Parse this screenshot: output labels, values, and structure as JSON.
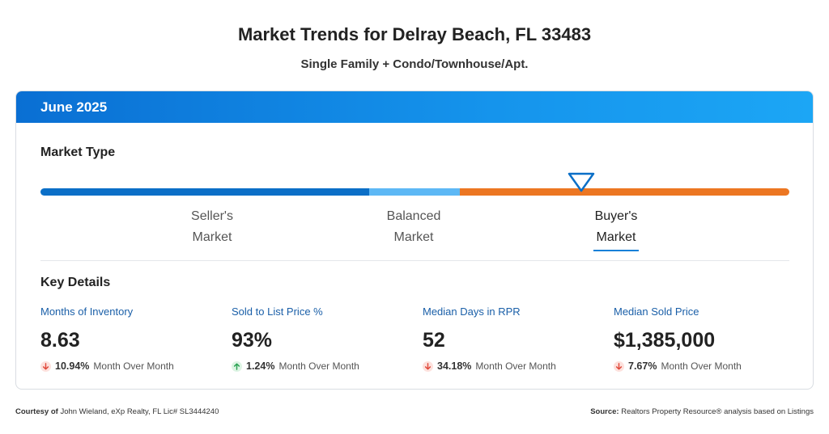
{
  "header": {
    "title": "Market Trends for Delray Beach, FL 33483",
    "subtitle": "Single Family + Condo/Townhouse/Apt."
  },
  "card": {
    "period": "June 2025",
    "market_type": {
      "heading": "Market Type",
      "segments": [
        {
          "line1": "Seller's",
          "line2": "Market",
          "color": "#0b6fc7"
        },
        {
          "line1": "Balanced",
          "line2": "Market",
          "color": "#5db8f5"
        },
        {
          "line1": "Buyer's",
          "line2": "Market",
          "color": "#ec7622"
        }
      ],
      "active": "Buyer's Market"
    },
    "key_details": {
      "heading": "Key Details",
      "metrics": [
        {
          "label": "Months of Inventory",
          "value": "8.63",
          "direction": "down",
          "change": "10.94%",
          "period": "Month Over Month"
        },
        {
          "label": "Sold to List Price %",
          "value": "93%",
          "direction": "up",
          "change": "1.24%",
          "period": "Month Over Month"
        },
        {
          "label": "Median Days in RPR",
          "value": "52",
          "direction": "down",
          "change": "34.18%",
          "period": "Month Over Month"
        },
        {
          "label": "Median Sold Price",
          "value": "$1,385,000",
          "direction": "down",
          "change": "7.67%",
          "period": "Month Over Month"
        }
      ]
    }
  },
  "footer": {
    "courtesy_label": "Courtesy of",
    "courtesy_text": "John Wieland, eXp Realty, FL Lic# SL3444240",
    "source_label": "Source:",
    "source_text": "Realtors Property Resource® analysis based on Listings"
  },
  "colors": {
    "header_gradient_start": "#0a6fd3",
    "header_gradient_end": "#1ca6f5",
    "down_arrow": "#e0483a",
    "up_arrow": "#2aa252",
    "label_blue": "#1a5fa8"
  },
  "icons": {
    "indicator": "triangle-down-indicator-icon",
    "down": "arrow-down-icon",
    "up": "arrow-up-icon"
  }
}
